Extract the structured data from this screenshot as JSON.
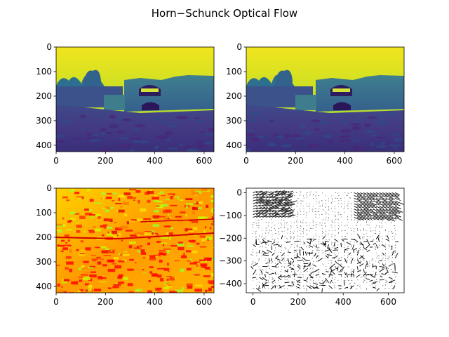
{
  "figure": {
    "title": "Horn−Schunck Optical Flow"
  },
  "chart_data": [
    {
      "type": "heatmap",
      "panel": "top-left",
      "colormap": "viridis",
      "content": "grayscale photo of castle gate and ruined wall with trees under bright sky",
      "x_ticks": [
        "0",
        "200",
        "400",
        "600"
      ],
      "y_ticks": [
        "0",
        "100",
        "200",
        "300",
        "400"
      ],
      "xlim": [
        0,
        640
      ],
      "ylim": [
        426,
        0
      ]
    },
    {
      "type": "heatmap",
      "panel": "top-right",
      "colormap": "viridis",
      "content": "second frame of the same castle gate scene",
      "x_ticks": [
        "0",
        "200",
        "400",
        "600"
      ],
      "y_ticks": [
        "0",
        "100",
        "200",
        "300",
        "400"
      ],
      "xlim": [
        0,
        640
      ],
      "ylim": [
        426,
        0
      ]
    },
    {
      "type": "heatmap",
      "panel": "bottom-left",
      "colormap": "hsv",
      "content": "flow magnitude rendered in red, orange, yellow and green tones",
      "x_ticks": [
        "0",
        "200",
        "400",
        "600"
      ],
      "y_ticks": [
        "0",
        "100",
        "200",
        "300",
        "400"
      ],
      "xlim": [
        0,
        640
      ],
      "ylim": [
        426,
        0
      ]
    },
    {
      "type": "scatter",
      "panel": "bottom-right",
      "content": "quiver plot of flow vectors, denser at top-left and top-right",
      "x_ticks": [
        "0",
        "200",
        "400",
        "600"
      ],
      "y_ticks": [
        "0",
        "−100",
        "−200",
        "−300",
        "−400"
      ],
      "xlim": [
        -30,
        670
      ],
      "ylim": [
        -440,
        20
      ]
    }
  ]
}
